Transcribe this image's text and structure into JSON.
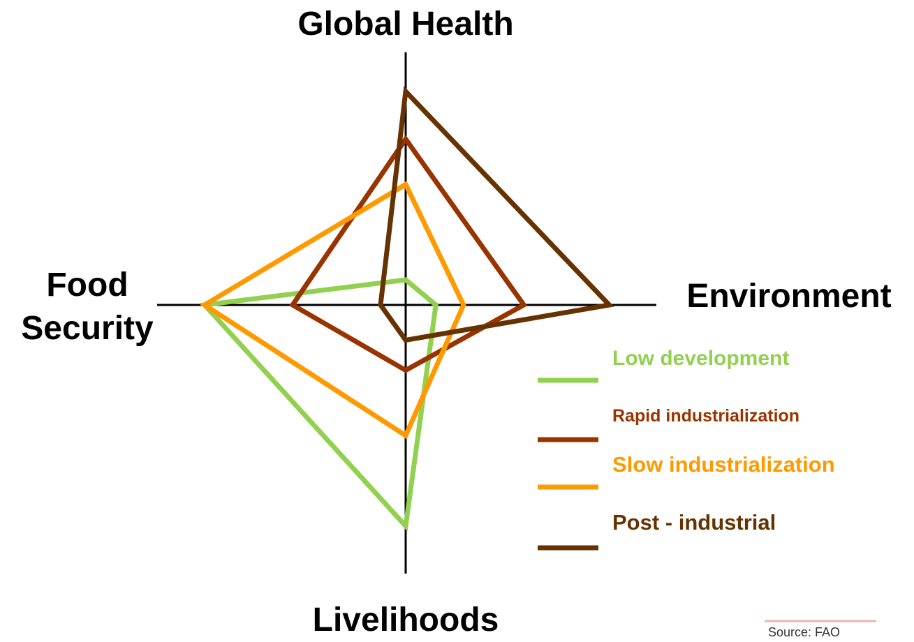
{
  "chart_data": {
    "type": "radar",
    "categories": [
      "Global Health",
      "Environment",
      "Livelihoods",
      "Food Security"
    ],
    "rlim": [
      0,
      10
    ],
    "series": [
      {
        "name": "Low development",
        "color": "#92d050",
        "values": [
          1.0,
          1.2,
          8.8,
          8.0
        ]
      },
      {
        "name": "Rapid industrialization",
        "color": "#993300",
        "values": [
          6.6,
          4.7,
          2.6,
          4.5
        ]
      },
      {
        "name": "Slow industrialization",
        "color": "#ff9900",
        "values": [
          4.8,
          2.3,
          5.2,
          8.0
        ]
      },
      {
        "name": "Post - industrial",
        "color": "#663300",
        "values": [
          8.5,
          8.1,
          1.4,
          1.0
        ]
      }
    ],
    "source": "Source: FAO"
  }
}
